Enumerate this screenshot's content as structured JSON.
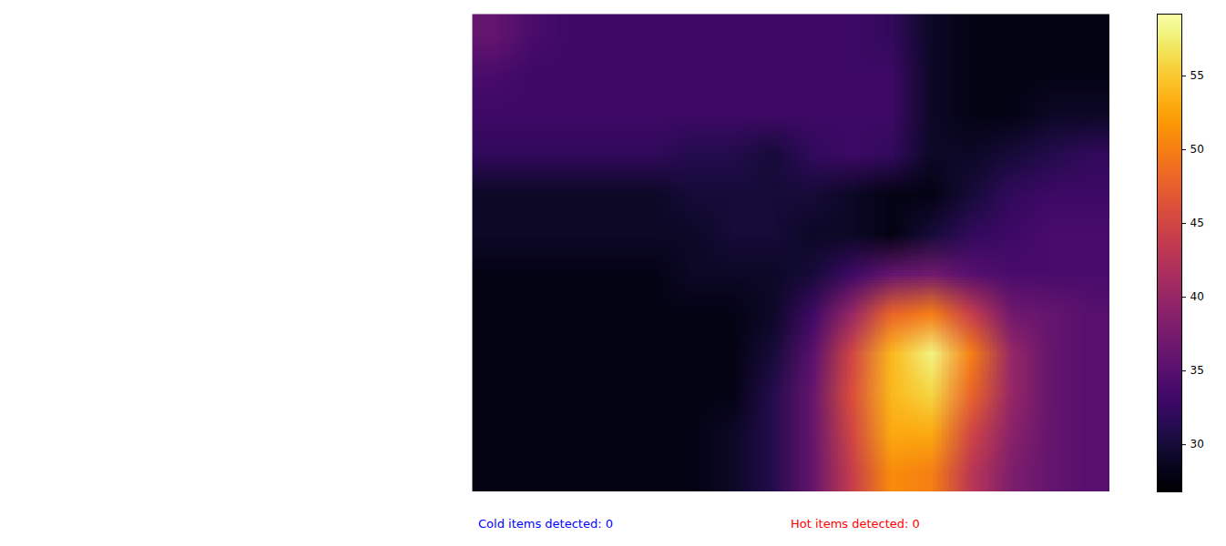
{
  "chart_data": {
    "type": "heatmap",
    "color": "inferno",
    "tick_labels": false,
    "cells": [
      [
        36,
        34,
        33,
        33,
        33,
        33,
        33,
        33,
        33,
        33,
        32,
        29,
        28,
        28,
        28,
        28
      ],
      [
        34,
        33,
        33,
        33,
        33,
        33,
        33,
        33,
        33,
        33,
        33,
        29,
        28,
        28,
        28,
        28
      ],
      [
        33,
        33,
        33,
        33,
        33,
        33,
        33,
        33,
        33,
        33,
        33,
        29,
        28,
        28,
        29,
        29
      ],
      [
        32,
        32,
        32,
        32,
        32,
        31,
        31,
        30,
        32,
        33,
        32,
        29,
        29,
        30,
        31,
        32
      ],
      [
        29,
        29,
        29,
        29,
        29,
        30,
        30,
        30,
        30,
        29,
        28,
        28,
        30,
        32,
        33,
        33
      ],
      [
        29,
        29,
        29,
        29,
        29,
        29,
        30,
        30,
        29,
        29,
        28,
        30,
        32,
        33,
        34,
        34
      ],
      [
        28,
        28,
        28,
        28,
        28,
        29,
        29,
        29,
        30,
        33,
        36,
        37,
        35,
        34,
        34,
        34
      ],
      [
        28,
        28,
        28,
        28,
        28,
        28,
        28,
        29,
        33,
        40,
        48,
        50,
        44,
        37,
        36,
        35
      ],
      [
        28,
        28,
        28,
        28,
        28,
        28,
        28,
        30,
        35,
        45,
        54,
        58,
        50,
        40,
        36,
        35
      ],
      [
        28,
        28,
        28,
        28,
        28,
        28,
        28,
        31,
        36,
        46,
        54,
        56,
        48,
        40,
        36,
        35
      ],
      [
        28,
        28,
        28,
        28,
        28,
        28,
        29,
        31,
        36,
        45,
        53,
        53,
        45,
        39,
        36,
        35
      ],
      [
        28,
        28,
        28,
        28,
        28,
        28,
        29,
        31,
        36,
        44,
        51,
        50,
        43,
        38,
        36,
        35
      ]
    ],
    "colorbar": {
      "range": [
        26.8,
        59.2
      ],
      "ticks": [
        30,
        35,
        40,
        45,
        50,
        55
      ]
    },
    "annotations": [
      {
        "text": "Cold items detected: 0",
        "color": "blue"
      },
      {
        "text": "Hot items detected: 0",
        "color": "red"
      }
    ]
  }
}
